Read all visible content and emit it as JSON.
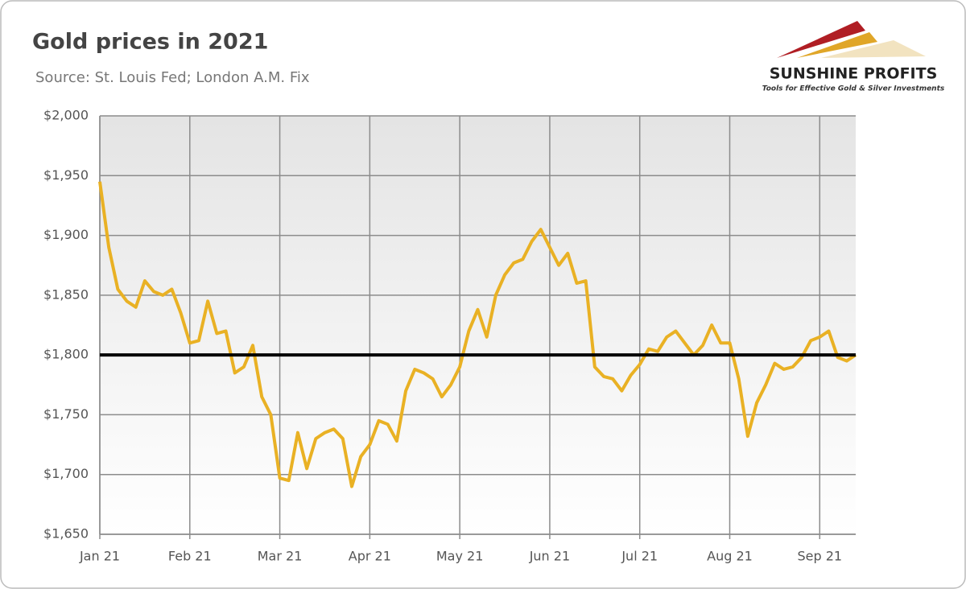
{
  "chart_data": {
    "type": "line",
    "title": "Gold prices in 2021",
    "subtitle": "Source: St. Louis Fed; London A.M. Fix",
    "logo": {
      "name": "SUNSHINE PROFITS",
      "tagline": "Tools for Effective Gold & Silver Investments"
    },
    "categories": [
      "Jan 21",
      null,
      null,
      null,
      null,
      null,
      null,
      null,
      null,
      null,
      "Feb 21",
      null,
      null,
      null,
      null,
      null,
      null,
      null,
      null,
      null,
      "Mar 21",
      null,
      null,
      null,
      null,
      null,
      null,
      null,
      null,
      null,
      "Apr 21",
      null,
      null,
      null,
      null,
      null,
      null,
      null,
      null,
      null,
      "May 21",
      null,
      null,
      null,
      null,
      null,
      null,
      null,
      null,
      null,
      "Jun 21",
      null,
      null,
      null,
      null,
      null,
      null,
      null,
      null,
      null,
      "Jul 21",
      null,
      null,
      null,
      null,
      null,
      null,
      null,
      null,
      null,
      "Aug 21",
      null,
      null,
      null,
      null,
      null,
      null,
      null,
      null,
      null,
      "Sep 21",
      null,
      null,
      null,
      null
    ],
    "series": [
      {
        "color": "#e9b124",
        "values": [
          1945,
          1890,
          1855,
          1845,
          1840,
          1862,
          1853,
          1850,
          1855,
          1835,
          1810,
          1812,
          1845,
          1818,
          1820,
          1785,
          1790,
          1808,
          1765,
          1750,
          1697,
          1695,
          1735,
          1705,
          1730,
          1735,
          1738,
          1730,
          1690,
          1715,
          1725,
          1745,
          1742,
          1728,
          1770,
          1788,
          1785,
          1780,
          1765,
          1775,
          1790,
          1820,
          1838,
          1815,
          1850,
          1867,
          1877,
          1880,
          1895,
          1905,
          1890,
          1875,
          1885,
          1860,
          1862,
          1790,
          1782,
          1780,
          1770,
          1783,
          1792,
          1805,
          1803,
          1815,
          1820,
          1810,
          1800,
          1808,
          1825,
          1810,
          1810,
          1780,
          1732,
          1760,
          1775,
          1793,
          1788,
          1790,
          1798,
          1812,
          1815,
          1820,
          1798,
          1795,
          1800
        ]
      }
    ],
    "reference_line": {
      "value": 1800,
      "color": "#000000"
    },
    "ylim": [
      1650,
      2000
    ],
    "yticks": [
      {
        "value": 1650,
        "label": "$1,650"
      },
      {
        "value": 1700,
        "label": "$1,700"
      },
      {
        "value": 1750,
        "label": "$1,750"
      },
      {
        "value": 1800,
        "label": "$1,800"
      },
      {
        "value": 1850,
        "label": "$1,850"
      },
      {
        "value": 1900,
        "label": "$1,900"
      },
      {
        "value": 1950,
        "label": "$1,950"
      },
      {
        "value": 2000,
        "label": "$2,000"
      }
    ],
    "grid": true
  }
}
